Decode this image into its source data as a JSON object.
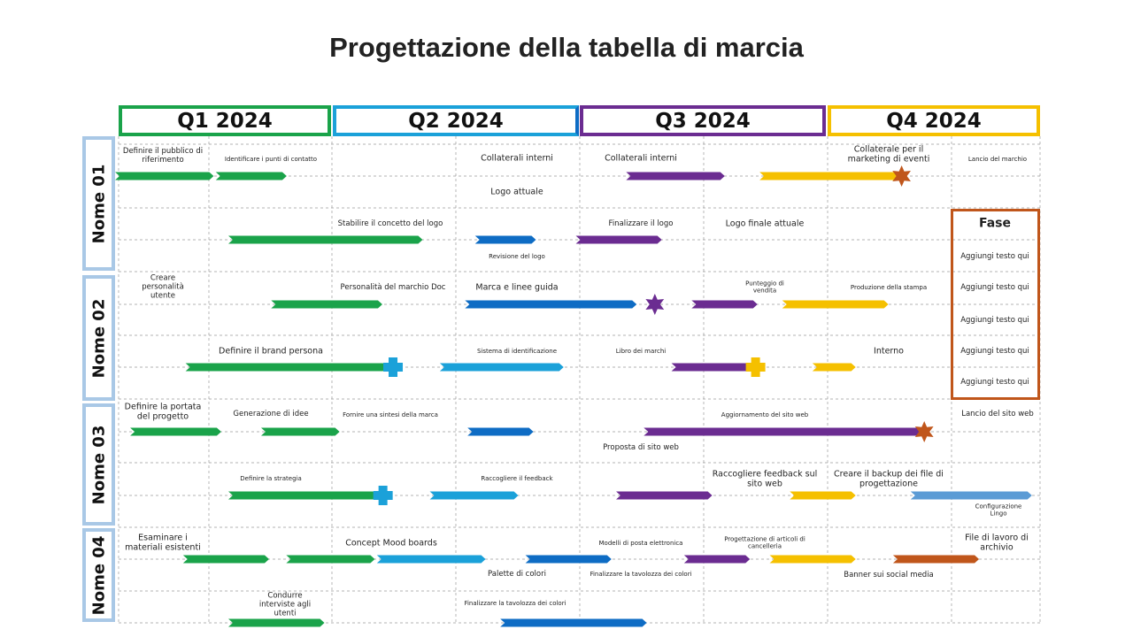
{
  "title": "Progettazione della tabella di marcia",
  "quarters": [
    {
      "label": "Q1 2024",
      "color": "#1aa34a"
    },
    {
      "label": "Q2 2024",
      "color": "#1ba1d9"
    },
    {
      "label": "Q3 2024",
      "color": "#6b2c91"
    },
    {
      "label": "Q4 2024",
      "color": "#f5c000"
    }
  ],
  "rows": [
    "Nome 01",
    "Nome 02",
    "Nome 03",
    "Nome 04"
  ],
  "phase_box": {
    "title": "Fase",
    "items": [
      "Aggiungi testo qui",
      "Aggiungi testo qui",
      "Aggiungi testo qui",
      "Aggiungi testo qui",
      "Aggiungi testo qui"
    ],
    "color": "#c0561b"
  },
  "labels": {
    "r1": [
      "Definire il pubblico di riferimento",
      "Identificare  i punti di contatto",
      "Collaterali interni",
      "Collaterali interni",
      "Collaterale per il marketing di eventi",
      "Lancio del marchio",
      "Logo attuale"
    ],
    "r2": [
      "Stabilire il concetto del logo",
      "Revisione del logo",
      "Finalizzare il logo",
      "Logo  finale attuale"
    ],
    "r3": [
      "Creare personalità utente",
      "Personalità del marchio Doc",
      "Marca e linee guida",
      "Punteggio di vendita",
      "Produzione della stampa"
    ],
    "r4": [
      "Definire il brand persona",
      "Sistema di identificazione",
      "Libro dei marchi",
      "Interno"
    ],
    "r5": [
      "Definire la portata del progetto",
      "Generazione di idee",
      "Fornire  una sintesi della marca",
      "Aggiornamento del sito web",
      "Lancio del sito web",
      "Proposta di sito web"
    ],
    "r6": [
      "Definire la strategia",
      "Raccogliere  il feedback",
      "Raccogliere feedback sul sito web",
      "Creare il backup dei file di progettazione",
      "Configurazione Lingo"
    ],
    "r7": [
      "Esaminare i materiali esistenti",
      "Concept Mood boards",
      "Modelli di posta elettronica",
      "Progettazione di articoli di cancelleria",
      "File di lavoro di archivio",
      "Palette di colori",
      "Finalizzare la tavolozza dei colori",
      "Banner sui social media"
    ],
    "r8": [
      "Condurre interviste agli utenti",
      "Finalizzare la tavolozza dei colori"
    ]
  },
  "colors": {
    "green": "#1aa34a",
    "cyan": "#1ba1d9",
    "blue": "#0e6cc4",
    "purple": "#6b2c91",
    "yellow": "#f5c000",
    "orange": "#c0561b",
    "lightblue": "#5b9bd5",
    "grid": "#9a9a9a",
    "rowlabel_border": "#a9c8e6"
  },
  "bars": [
    {
      "row": 1,
      "from": "2024-01-01",
      "to": "2024-02-06",
      "color": "green"
    },
    {
      "row": 1,
      "from": "2024-02-10",
      "to": "2024-03-06",
      "color": "green"
    },
    {
      "row": 1,
      "from": "2024-07-22",
      "to": "2024-08-27",
      "color": "purple"
    },
    {
      "row": 1,
      "from": "2024-09-13",
      "to": "2024-11-04",
      "color": "yellow"
    },
    {
      "row": 2,
      "from": "2024-02-15",
      "to": "2024-04-29",
      "color": "green"
    },
    {
      "row": 2,
      "from": "2024-05-23",
      "to": "2024-06-13",
      "color": "blue"
    },
    {
      "row": 2,
      "from": "2024-07-02",
      "to": "2024-08-02",
      "color": "purple"
    },
    {
      "row": 3,
      "from": "2024-03-03",
      "to": "2024-04-13",
      "color": "green"
    },
    {
      "row": 3,
      "from": "2024-05-19",
      "to": "2024-07-23",
      "color": "blue"
    },
    {
      "row": 3,
      "from": "2024-08-17",
      "to": "2024-09-09",
      "color": "purple"
    },
    {
      "row": 3,
      "from": "2024-09-22",
      "to": "2024-10-31",
      "color": "yellow"
    },
    {
      "row": 4,
      "from": "2024-01-29",
      "to": "2024-04-15",
      "color": "green"
    },
    {
      "row": 4,
      "from": "2024-05-09",
      "to": "2024-06-24",
      "color": "cyan"
    },
    {
      "row": 4,
      "from": "2024-08-09",
      "to": "2024-09-07",
      "color": "purple"
    },
    {
      "row": 4,
      "from": "2024-10-04",
      "to": "2024-10-18",
      "color": "yellow"
    },
    {
      "row": 5,
      "from": "2024-01-07",
      "to": "2024-02-09",
      "color": "green"
    },
    {
      "row": 5,
      "from": "2024-02-28",
      "to": "2024-03-27",
      "color": "green"
    },
    {
      "row": 5,
      "from": "2024-05-20",
      "to": "2024-06-12",
      "color": "blue"
    },
    {
      "row": 5,
      "from": "2024-07-29",
      "to": "2024-11-14",
      "color": "purple"
    },
    {
      "row": 6,
      "from": "2024-02-15",
      "to": "2024-04-11",
      "color": "green"
    },
    {
      "row": 6,
      "from": "2024-05-05",
      "to": "2024-06-06",
      "color": "cyan"
    },
    {
      "row": 6,
      "from": "2024-07-18",
      "to": "2024-08-22",
      "color": "purple"
    },
    {
      "row": 6,
      "from": "2024-09-25",
      "to": "2024-10-18",
      "color": "yellow"
    },
    {
      "row": 6,
      "from": "2024-11-12",
      "to": "2024-12-27",
      "color": "lightblue"
    },
    {
      "row": 7,
      "from": "2024-01-28",
      "to": "2024-02-28",
      "color": "green"
    },
    {
      "row": 7,
      "from": "2024-03-09",
      "to": "2024-04-10",
      "color": "green"
    },
    {
      "row": 7,
      "from": "2024-04-14",
      "to": "2024-05-24",
      "color": "cyan"
    },
    {
      "row": 7,
      "from": "2024-06-12",
      "to": "2024-07-13",
      "color": "blue"
    },
    {
      "row": 7,
      "from": "2024-08-14",
      "to": "2024-09-06",
      "color": "purple"
    },
    {
      "row": 7,
      "from": "2024-09-17",
      "to": "2024-10-18",
      "color": "yellow"
    },
    {
      "row": 7,
      "from": "2024-11-05",
      "to": "2024-12-06",
      "color": "orange"
    },
    {
      "row": 8,
      "from": "2024-02-15",
      "to": "2024-03-21",
      "color": "green"
    },
    {
      "row": 8,
      "from": "2024-06-02",
      "to": "2024-07-27",
      "color": "blue"
    }
  ],
  "markers": [
    {
      "row": 1,
      "date": "2024-11-07",
      "shape": "star",
      "color": "orange"
    },
    {
      "row": 3,
      "date": "2024-08-01",
      "shape": "star",
      "color": "purple"
    },
    {
      "row": 4,
      "date": "2024-04-19",
      "shape": "cross",
      "color": "cyan"
    },
    {
      "row": 4,
      "date": "2024-09-10",
      "shape": "cross",
      "color": "yellow"
    },
    {
      "row": 5,
      "date": "2024-11-16",
      "shape": "star",
      "color": "orange"
    },
    {
      "row": 6,
      "date": "2024-04-15",
      "shape": "cross",
      "color": "cyan"
    }
  ]
}
